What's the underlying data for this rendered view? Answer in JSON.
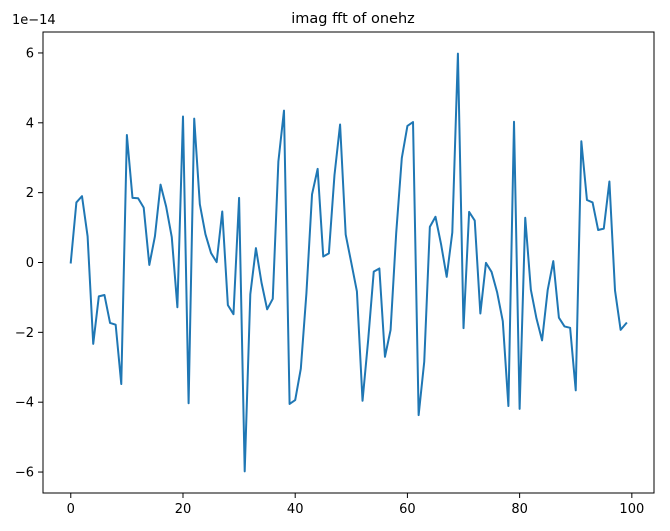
{
  "chart_data": {
    "type": "line",
    "title": "imag fft of onehz",
    "xlabel": "",
    "ylabel": "",
    "y_offset_text": "1e−14",
    "xlim": [
      -4.95,
      103.95
    ],
    "ylim": [
      -6.6,
      6.6
    ],
    "x_ticks": [
      0,
      20,
      40,
      60,
      80,
      100
    ],
    "y_ticks": [
      -6,
      -4,
      -2,
      0,
      2,
      4,
      6
    ],
    "x_tick_labels": [
      "0",
      "20",
      "40",
      "60",
      "80",
      "100"
    ],
    "y_tick_labels": [
      "−6",
      "−4",
      "−2",
      "0",
      "2",
      "4",
      "6"
    ],
    "grid": false,
    "line_color": "#1f77b4",
    "series": [
      {
        "x": [
          0,
          1,
          2,
          3,
          4,
          5,
          6,
          7,
          8,
          9,
          10,
          11,
          12,
          13,
          14,
          15,
          16,
          17,
          18,
          19,
          20,
          21,
          22,
          23,
          24,
          25,
          26,
          27,
          28,
          29,
          30,
          31,
          32,
          33,
          34,
          35,
          36,
          37,
          38,
          39,
          40,
          41,
          42,
          43,
          44,
          45,
          46,
          47,
          48,
          49,
          50,
          51,
          52,
          53,
          54,
          55,
          56,
          57,
          58,
          59,
          60,
          61,
          62,
          63,
          64,
          65,
          66,
          67,
          68,
          69,
          70,
          71,
          72,
          73,
          74,
          75,
          76,
          77,
          78,
          79,
          80,
          81,
          82,
          83,
          84,
          85,
          86,
          87,
          88,
          89,
          90,
          91,
          92,
          93,
          94,
          95,
          96,
          97,
          98,
          99
        ],
        "values": [
          0.0,
          1.72,
          1.9,
          0.75,
          -2.33,
          -0.97,
          -0.93,
          -1.73,
          -1.78,
          -3.48,
          3.65,
          1.85,
          1.84,
          1.57,
          -0.07,
          0.75,
          2.23,
          1.6,
          0.73,
          -1.28,
          4.18,
          -4.03,
          4.12,
          1.67,
          0.81,
          0.27,
          0.01,
          1.46,
          -1.22,
          -1.48,
          1.85,
          -5.98,
          -0.91,
          0.41,
          -0.58,
          -1.34,
          -1.04,
          2.89,
          4.35,
          -4.05,
          -3.94,
          -3.04,
          -0.88,
          1.95,
          2.68,
          0.17,
          0.26,
          2.5,
          3.95,
          0.8,
          -0.01,
          -0.83,
          -3.96,
          -2.23,
          -0.26,
          -0.17,
          -2.7,
          -1.93,
          0.84,
          2.99,
          3.91,
          4.02,
          -4.37,
          -2.84,
          1.02,
          1.31,
          0.52,
          -0.41,
          0.86,
          5.98,
          -1.88,
          1.45,
          1.2,
          -1.46,
          -0.01,
          -0.27,
          -0.86,
          -1.68,
          -4.11,
          4.03,
          -4.19,
          1.28,
          -0.78,
          -1.6,
          -2.23,
          -0.79,
          0.04,
          -1.58,
          -1.83,
          -1.87,
          -3.66,
          3.47,
          1.79,
          1.72,
          0.93,
          0.97,
          2.32,
          -0.8,
          -1.93,
          -1.74
        ]
      }
    ]
  }
}
